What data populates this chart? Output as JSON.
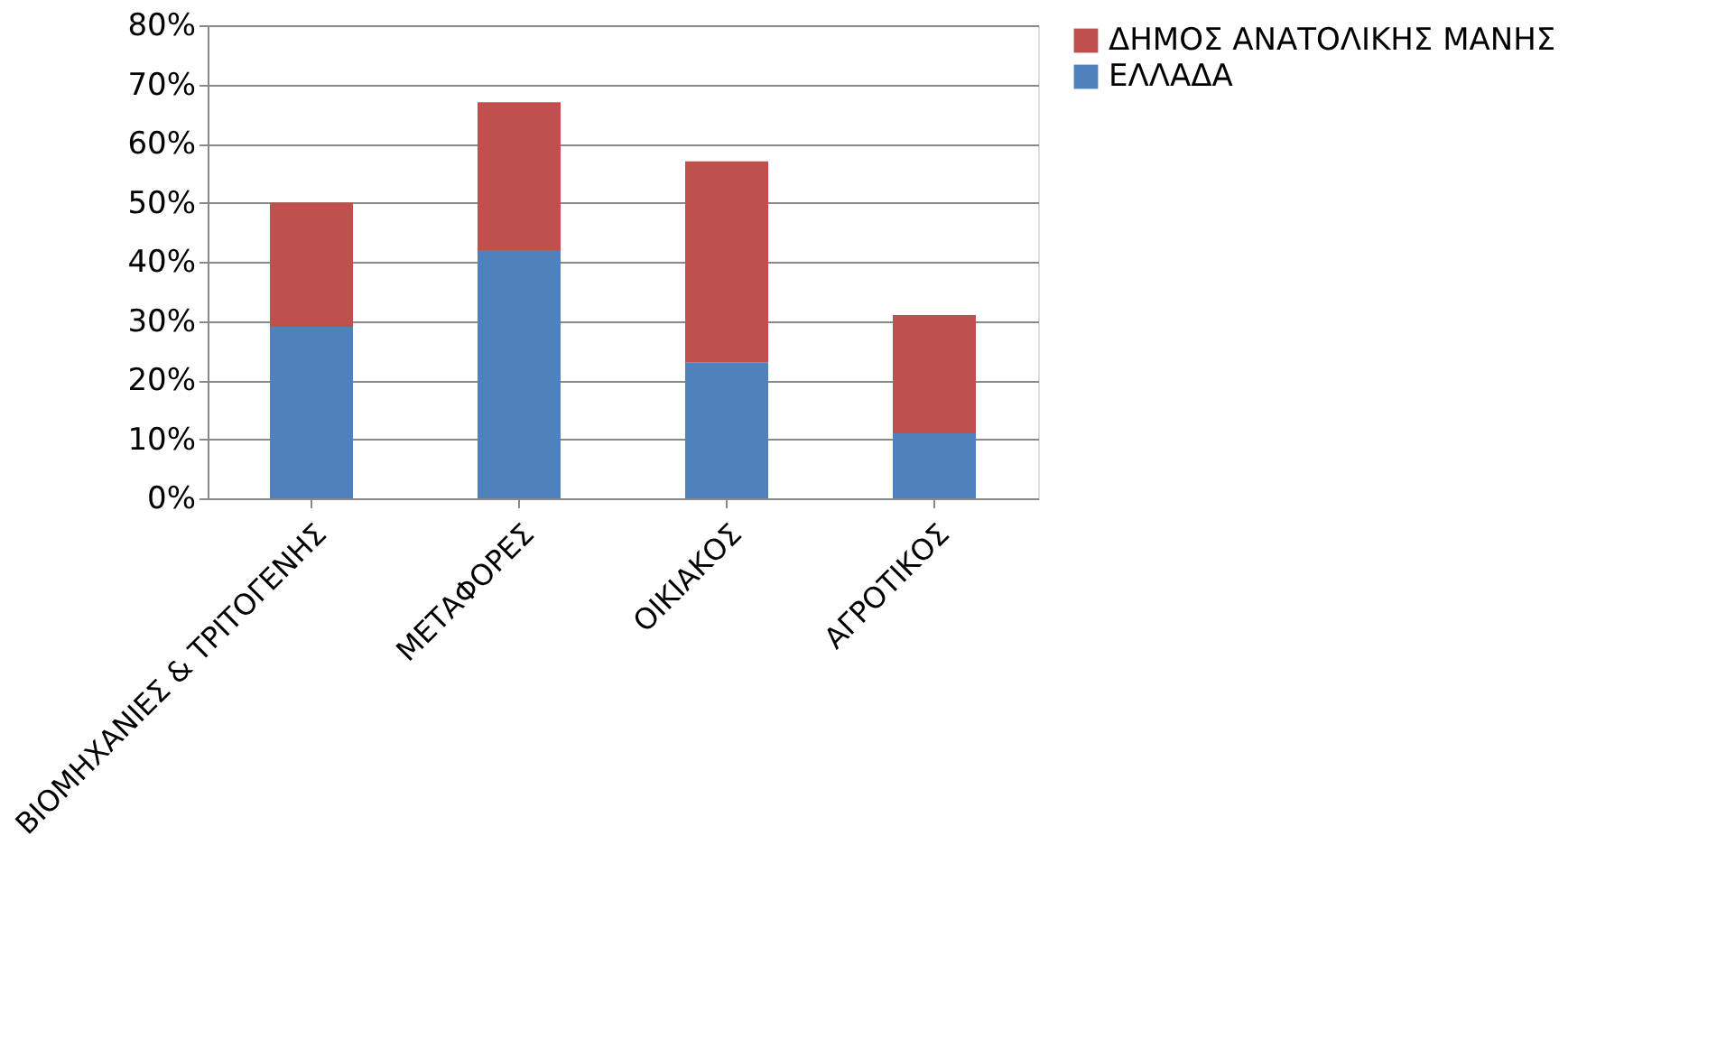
{
  "chart_data": {
    "type": "bar",
    "stacked": true,
    "categories": [
      "ΒΙΟΜΗΧΑΝΙΕΣ & ΤΡΙΤΟΓΕΝΗΣ",
      "ΜΕΤΑΦΟΡΕΣ",
      "ΟΙΚΙΑΚΟΣ",
      "ΑΓΡΟΤΙΚΟΣ"
    ],
    "series": [
      {
        "name": "ΕΛΛΑΔΑ",
        "color": "#4f81bd",
        "values": [
          29,
          42,
          23,
          11
        ]
      },
      {
        "name": "ΔΗΜΟΣ ΑΝΑΤΟΛΙΚΗΣ ΜΑΝΗΣ",
        "color": "#c0504d",
        "values": [
          21,
          25,
          34,
          20
        ]
      }
    ],
    "ylim": [
      0,
      80
    ],
    "yticks": [
      {
        "value": 0,
        "label": "0%"
      },
      {
        "value": 10,
        "label": "10%"
      },
      {
        "value": 20,
        "label": "20%"
      },
      {
        "value": 30,
        "label": "30%"
      },
      {
        "value": 40,
        "label": "40%"
      },
      {
        "value": 50,
        "label": "50%"
      },
      {
        "value": 60,
        "label": "60%"
      },
      {
        "value": 70,
        "label": "70%"
      },
      {
        "value": 80,
        "label": "80%"
      }
    ],
    "grid": "y",
    "legend": "right"
  }
}
